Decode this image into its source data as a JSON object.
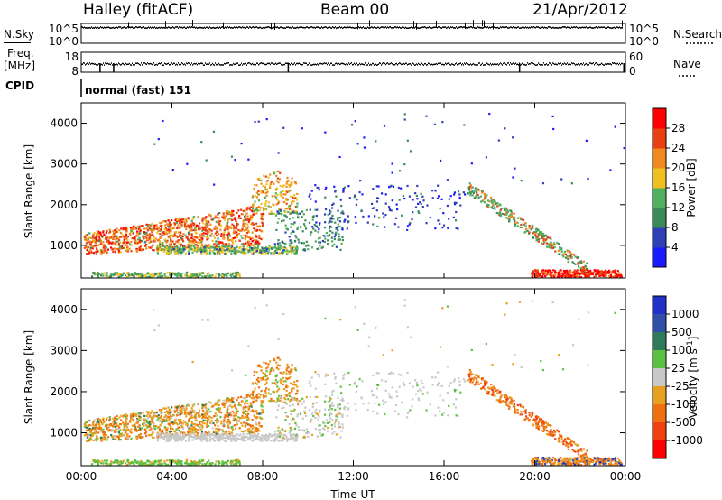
{
  "header": {
    "station": "Halley (fitACF)",
    "beam": "Beam 00",
    "date": "21/Apr/2012"
  },
  "noise_panel": {
    "left_label": "N.Sky",
    "right_label": "N.Search",
    "left_ticks": [
      "10^5",
      "10^0"
    ],
    "right_ticks": [
      "10^5",
      "10^0"
    ]
  },
  "freq_panel": {
    "left_label_1": "Freq.",
    "left_label_2": "[MHz]",
    "right_label": "Nave",
    "left_ticks": [
      "18",
      "8"
    ],
    "right_ticks": [
      "60",
      "0"
    ]
  },
  "cpid": {
    "label": "CPID",
    "value": "normal (fast) 151"
  },
  "colors": {
    "power_scale": [
      "#1a1aff",
      "#2f3fb8",
      "#3c8a5a",
      "#4fb05f",
      "#f0c020",
      "#f08a20",
      "#e84010",
      "#ff0000"
    ],
    "velocity_scale": [
      "#2030c8",
      "#2f4fa8",
      "#2f7a58",
      "#5cc040",
      "#c8c8c8",
      "#e8a020",
      "#f07010",
      "#f04010",
      "#ff0000"
    ],
    "grey": "#c0c0c0"
  },
  "chart_data": [
    {
      "type": "heatmap",
      "panel": "power",
      "ylabel": "Slant Range [km]",
      "xlabel": "",
      "yticks": [
        1000,
        2000,
        3000,
        4000
      ],
      "ylim": [
        200,
        4500
      ],
      "xlim_hours": [
        0,
        24
      ],
      "colorbar_label": "Power [dB]",
      "colorbar_ticks": [
        "4",
        "8",
        "12",
        "16",
        "20",
        "24",
        "28"
      ],
      "colorbar_range": [
        0,
        32
      ]
    },
    {
      "type": "heatmap",
      "panel": "velocity",
      "ylabel": "Slant Range [km]",
      "xlabel": "Time UT",
      "yticks": [
        1000,
        2000,
        3000,
        4000
      ],
      "ylim": [
        200,
        4500
      ],
      "xlim_hours": [
        0,
        24
      ],
      "xticks": [
        "00:00",
        "04:00",
        "08:00",
        "12:00",
        "16:00",
        "20:00",
        "00:00"
      ],
      "xtick_hours": [
        0,
        4,
        8,
        12,
        16,
        20,
        24
      ],
      "colorbar_label": "Velocity [m s^-1]",
      "colorbar_ticks": [
        "1000",
        "500",
        "100",
        "25",
        "-25",
        "-100",
        "-500",
        "-1000"
      ]
    }
  ]
}
